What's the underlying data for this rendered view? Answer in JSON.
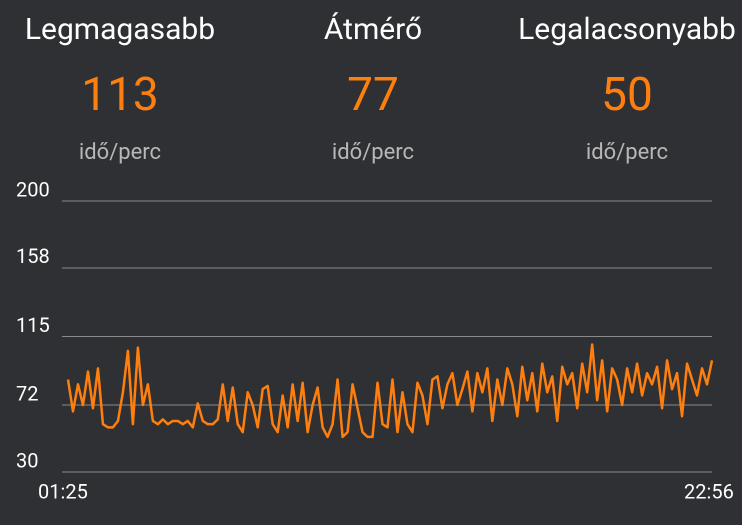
{
  "stats": [
    {
      "label": "Legmagasabb",
      "value": "113",
      "unit": "idő/perc"
    },
    {
      "label": "Átmérő",
      "value": "77",
      "unit": "idő/perc"
    },
    {
      "label": "Legalacsonyabb",
      "value": "50",
      "unit": "idő/perc"
    }
  ],
  "chart_data": {
    "type": "line",
    "color": "#ff7f0e",
    "grid": true,
    "ylim": [
      30,
      200
    ],
    "yticks": [
      30,
      72,
      115,
      158,
      200
    ],
    "categories": [
      "01:25",
      null,
      null,
      null,
      null,
      null,
      null,
      null,
      null,
      null,
      null,
      null,
      null,
      null,
      null,
      null,
      null,
      null,
      null,
      null,
      null,
      null,
      null,
      null,
      null,
      null,
      null,
      null,
      null,
      null,
      null,
      null,
      null,
      null,
      null,
      null,
      null,
      null,
      null,
      null,
      null,
      null,
      null,
      null,
      null,
      null,
      null,
      null,
      null,
      null,
      null,
      null,
      null,
      null,
      null,
      null,
      null,
      null,
      null,
      null,
      null,
      null,
      null,
      null,
      null,
      null,
      null,
      null,
      null,
      null,
      null,
      null,
      null,
      null,
      null,
      null,
      null,
      null,
      null,
      null,
      null,
      null,
      null,
      null,
      null,
      null,
      null,
      null,
      null,
      null,
      null,
      null,
      null,
      null,
      null,
      null,
      null,
      null,
      null,
      null,
      null,
      null,
      null,
      null,
      null,
      null,
      null,
      null,
      null,
      null,
      null,
      null,
      null,
      null,
      null,
      null,
      null,
      null,
      null,
      null,
      null,
      null,
      null,
      null,
      null,
      null,
      null,
      null,
      null,
      "22:56"
    ],
    "values": [
      88,
      68,
      85,
      72,
      93,
      70,
      95,
      60,
      58,
      58,
      62,
      80,
      106,
      60,
      108,
      72,
      85,
      62,
      60,
      63,
      60,
      62,
      62,
      60,
      62,
      58,
      73,
      62,
      60,
      60,
      63,
      85,
      62,
      83,
      60,
      55,
      80,
      72,
      58,
      82,
      84,
      60,
      55,
      78,
      58,
      85,
      62,
      86,
      55,
      72,
      83,
      58,
      52,
      60,
      88,
      52,
      55,
      85,
      70,
      55,
      52,
      52,
      86,
      60,
      58,
      88,
      55,
      80,
      60,
      55,
      86,
      78,
      60,
      88,
      90,
      70,
      85,
      92,
      72,
      82,
      93,
      68,
      92,
      80,
      95,
      62,
      88,
      72,
      95,
      85,
      65,
      96,
      75,
      92,
      68,
      98,
      80,
      90,
      62,
      96,
      85,
      92,
      70,
      98,
      80,
      110,
      75,
      100,
      68,
      95,
      88,
      72,
      95,
      80,
      98,
      78,
      92,
      85,
      96,
      70,
      100,
      82,
      92,
      65,
      98,
      88,
      78,
      95,
      85,
      100
    ]
  }
}
